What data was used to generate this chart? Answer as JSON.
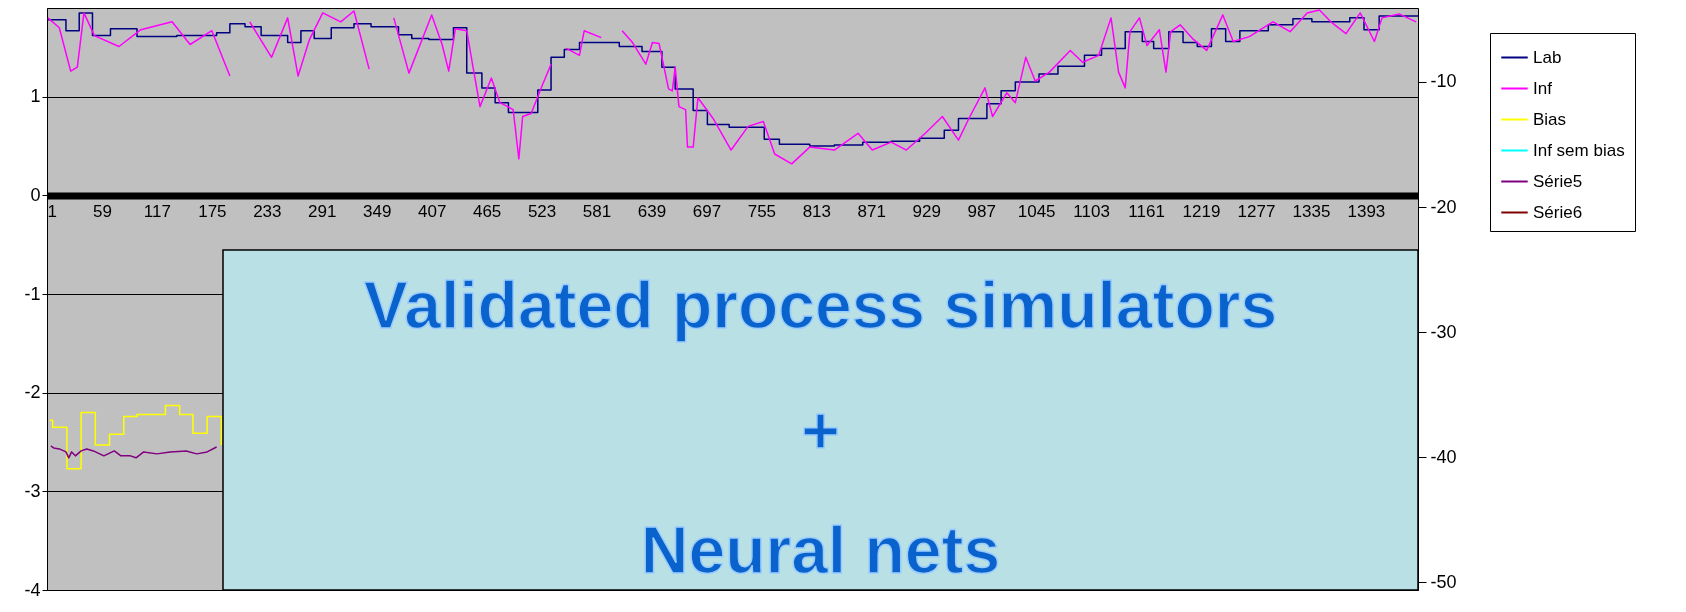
{
  "chart_data": {
    "type": "line",
    "xlim": [
      1,
      1448
    ],
    "xticks": [
      1,
      59,
      117,
      175,
      233,
      291,
      349,
      407,
      465,
      523,
      581,
      639,
      697,
      755,
      813,
      871,
      929,
      987,
      1045,
      1103,
      1161,
      1219,
      1277,
      1335,
      1393
    ],
    "ylim": [
      -4,
      1.9
    ],
    "yticks": [
      -4,
      -3,
      -2,
      -1,
      0,
      1
    ],
    "y2lim": [
      -50.6,
      -4.1
    ],
    "y2ticks": [
      -10,
      -20,
      -30,
      -40,
      -50
    ],
    "grid": "y",
    "legend": "right",
    "annotations": [
      "Validated process simulators",
      "+",
      "Neural nets"
    ],
    "series": [
      {
        "name": "Lab",
        "color": "#000080",
        "type": "step",
        "x": [
          2,
          21,
          35,
          49,
          68,
          96,
          138,
          180,
          194,
          210,
          227,
          255,
          269,
          283,
          301,
          325,
          343,
          372,
          386,
          404,
          430,
          444,
          460,
          474,
          488,
          519,
          533,
          547,
          563,
          605,
          629,
          650,
          664,
          683,
          698,
          721,
          758,
          774,
          806,
          832,
          862,
          892,
          922,
          948,
          963,
          993,
          1008,
          1023,
          1048,
          1068,
          1096,
          1114,
          1139,
          1157,
          1169,
          1185,
          1200,
          1215,
          1230,
          1245,
          1260,
          1290,
          1316,
          1336,
          1376,
          1391,
          1407,
          1430,
          1448
        ],
        "values": [
          1.78,
          1.67,
          1.85,
          1.62,
          1.69,
          1.61,
          1.62,
          1.65,
          1.74,
          1.71,
          1.62,
          1.55,
          1.67,
          1.59,
          1.7,
          1.74,
          1.71,
          1.63,
          1.59,
          1.58,
          1.7,
          1.24,
          1.09,
          0.94,
          0.84,
          1.07,
          1.4,
          1.48,
          1.55,
          1.51,
          1.46,
          1.3,
          1.08,
          0.86,
          0.72,
          0.69,
          0.57,
          0.52,
          0.5,
          0.51,
          0.54,
          0.55,
          0.58,
          0.66,
          0.78,
          0.93,
          1.06,
          1.15,
          1.23,
          1.31,
          1.42,
          1.49,
          1.66,
          1.56,
          1.49,
          1.66,
          1.55,
          1.51,
          1.69,
          1.56,
          1.67,
          1.73,
          1.79,
          1.76,
          1.8,
          1.68,
          1.82,
          1.82,
          1.82
        ]
      },
      {
        "name": "Inf",
        "color": "#ff00ff",
        "x": [
          2,
          14,
          26,
          33,
          40,
          51,
          77,
          100,
          133,
          152,
          175,
          194,
          201,
          215,
          238,
          255,
          266,
          278,
          292,
          311,
          325,
          341,
          348,
          367,
          383,
          407,
          418,
          425,
          432,
          444,
          451,
          458,
          470,
          479,
          493,
          499,
          503,
          512,
          523,
          533,
          543,
          549,
          563,
          568,
          586,
          598,
          608,
          619,
          633,
          640,
          647,
          657,
          661,
          664,
          668,
          675,
          677,
          683,
          688,
          704,
          723,
          741,
          757,
          769,
          787,
          806,
          832,
          857,
          872,
          892,
          908,
          928,
          946,
          963,
          974,
          991,
          999,
          1014,
          1023,
          1034,
          1044,
          1059,
          1081,
          1094,
          1111,
          1124,
          1132,
          1139,
          1144,
          1154,
          1162,
          1175,
          1182,
          1187,
          1197,
          1210,
          1225,
          1242,
          1253,
          1270,
          1295,
          1313,
          1331,
          1344,
          1356,
          1372,
          1387,
          1402,
          1410,
          1428,
          1446
        ],
        "values": [
          1.8,
          1.7,
          1.26,
          1.3,
          1.85,
          1.62,
          1.51,
          1.68,
          1.76,
          1.53,
          1.67,
          1.21,
          null,
          1.76,
          1.4,
          1.8,
          1.21,
          1.58,
          1.85,
          1.76,
          1.87,
          1.28,
          null,
          1.8,
          1.24,
          1.83,
          1.53,
          1.26,
          1.69,
          1.67,
          1.28,
          0.9,
          1.19,
          0.94,
          0.87,
          0.37,
          0.8,
          0.83,
          1.1,
          1.33,
          null,
          1.49,
          1.42,
          1.67,
          1.6,
          null,
          1.67,
          1.55,
          1.33,
          1.55,
          1.54,
          1.08,
          1.06,
          1.3,
          0.9,
          0.87,
          0.49,
          0.49,
          0.99,
          0.78,
          0.46,
          0.7,
          0.75,
          0.42,
          0.32,
          0.49,
          0.46,
          0.63,
          0.46,
          0.54,
          0.46,
          0.63,
          0.8,
          0.56,
          0.78,
          1.09,
          0.8,
          1.04,
          0.94,
          1.4,
          1.16,
          1.25,
          1.47,
          1.35,
          1.42,
          1.8,
          1.25,
          1.09,
          1.66,
          1.8,
          1.52,
          1.68,
          1.25,
          1.66,
          1.73,
          1.59,
          1.47,
          1.83,
          1.56,
          1.61,
          1.76,
          1.66,
          1.85,
          1.88,
          1.76,
          1.64,
          1.85,
          1.56,
          1.8,
          1.84,
          1.76
        ]
      },
      {
        "name": "Bias",
        "color": "#ffff00",
        "type": "step",
        "x": [
          4,
          7,
          22,
          37,
          52,
          67,
          82,
          96,
          126,
          141,
          155,
          170,
          185
        ],
        "values": [
          -2.28,
          -2.35,
          -2.77,
          -2.2,
          -2.53,
          -2.42,
          -2.24,
          -2.22,
          -2.13,
          -2.22,
          -2.41,
          -2.24,
          -2.53
        ]
      },
      {
        "name": "Inf sem bias",
        "color": "#00ffff"
      },
      {
        "name": "Série5",
        "color": "#800080",
        "x": [
          5,
          8,
          14,
          21,
          24,
          27,
          31,
          37,
          43,
          50,
          61,
          72,
          79,
          89,
          95,
          103,
          117,
          131,
          148,
          159,
          170,
          180
        ],
        "values": [
          -2.54,
          -2.56,
          -2.57,
          -2.6,
          -2.66,
          -2.6,
          -2.64,
          -2.59,
          -2.57,
          -2.59,
          -2.64,
          -2.59,
          -2.64,
          -2.64,
          -2.66,
          -2.6,
          -2.62,
          -2.6,
          -2.59,
          -2.62,
          -2.6,
          -2.55
        ]
      },
      {
        "name": "Série6",
        "color": "#800000"
      }
    ]
  }
}
